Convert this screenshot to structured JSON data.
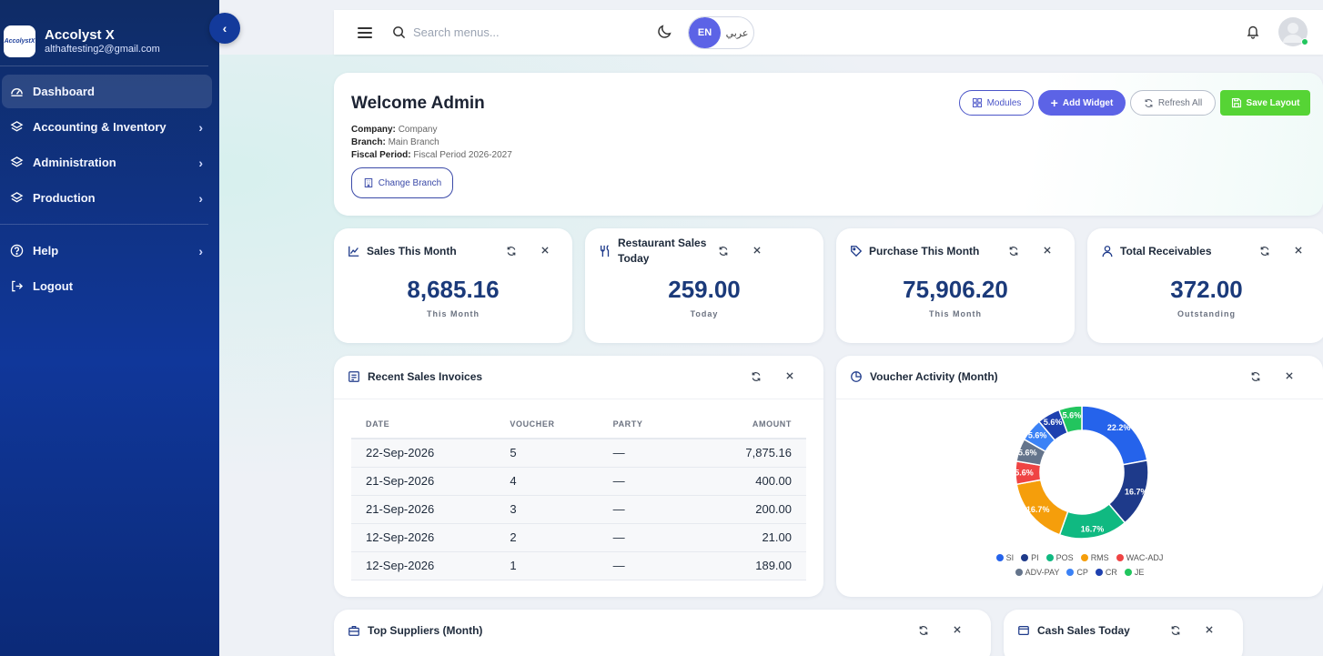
{
  "brand": {
    "logo_text": "AccolystX",
    "name": "Accolyst X",
    "email": "althaftesting2@gmail.com"
  },
  "sidebar": {
    "items": [
      {
        "label": "Dashboard",
        "icon": "gauge-icon"
      },
      {
        "label": "Accounting & Inventory",
        "icon": "layers-icon"
      },
      {
        "label": "Administration",
        "icon": "layers-icon"
      },
      {
        "label": "Production",
        "icon": "layers-icon"
      },
      {
        "label": "Help",
        "icon": "help-circle-icon"
      },
      {
        "label": "Logout",
        "icon": "logout-icon"
      }
    ]
  },
  "topbar": {
    "search_placeholder": "Search menus...",
    "lang_en": "EN",
    "lang_ar": "عربي"
  },
  "welcome": {
    "title": "Welcome Admin",
    "company_label": "Company:",
    "company_value": "Company",
    "branch_label": "Branch:",
    "branch_value": "Main Branch",
    "fiscal_label": "Fiscal Period:",
    "fiscal_value": "Fiscal Period 2026-2027",
    "change_branch": "Change Branch",
    "modules": "Modules",
    "add_widget": "Add Widget",
    "refresh_all": "Refresh All",
    "save_layout": "Save Layout"
  },
  "stats": [
    {
      "title": "Sales This Month",
      "value": "8,685.16",
      "sub": "This Month"
    },
    {
      "title": "Restaurant Sales Today",
      "value": "259.00",
      "sub": "Today"
    },
    {
      "title": "Purchase This Month",
      "value": "75,906.20",
      "sub": "This Month"
    },
    {
      "title": "Total Receivables",
      "value": "372.00",
      "sub": "Outstanding"
    }
  ],
  "invoices": {
    "title": "Recent Sales Invoices",
    "headers": [
      "DATE",
      "VOUCHER",
      "PARTY",
      "AMOUNT"
    ],
    "rows": [
      {
        "date": "22-Sep-2026",
        "voucher": "5",
        "party": "—",
        "amount": "7,875.16"
      },
      {
        "date": "21-Sep-2026",
        "voucher": "4",
        "party": "—",
        "amount": "400.00"
      },
      {
        "date": "21-Sep-2026",
        "voucher": "3",
        "party": "—",
        "amount": "200.00"
      },
      {
        "date": "12-Sep-2026",
        "voucher": "2",
        "party": "—",
        "amount": "21.00"
      },
      {
        "date": "12-Sep-2026",
        "voucher": "1",
        "party": "—",
        "amount": "189.00"
      }
    ]
  },
  "voucher_activity": {
    "title": "Voucher Activity (Month)"
  },
  "chart_data": {
    "type": "pie",
    "donut": true,
    "categories": [
      "SI",
      "PI",
      "POS",
      "RMS",
      "WAC-ADJ",
      "ADV-PAY",
      "CP",
      "CR",
      "JE"
    ],
    "values": [
      22.2,
      16.7,
      16.7,
      16.7,
      5.6,
      5.6,
      5.6,
      5.6,
      5.6
    ],
    "colors": [
      "#2563eb",
      "#1e3a8a",
      "#10b981",
      "#f59e0b",
      "#ef4444",
      "#64748b",
      "#3b82f6",
      "#1e40af",
      "#22c55e"
    ],
    "labels": [
      "22.2%",
      "16.7%",
      "16.7%",
      "16.7%",
      "5.6%",
      "5.6%",
      "5.6%",
      "5.6%",
      "5.6%"
    ],
    "legend_position": "bottom"
  },
  "bottom_panels": {
    "suppliers_title": "Top Suppliers (Month)",
    "cash_title": "Cash Sales Today"
  }
}
